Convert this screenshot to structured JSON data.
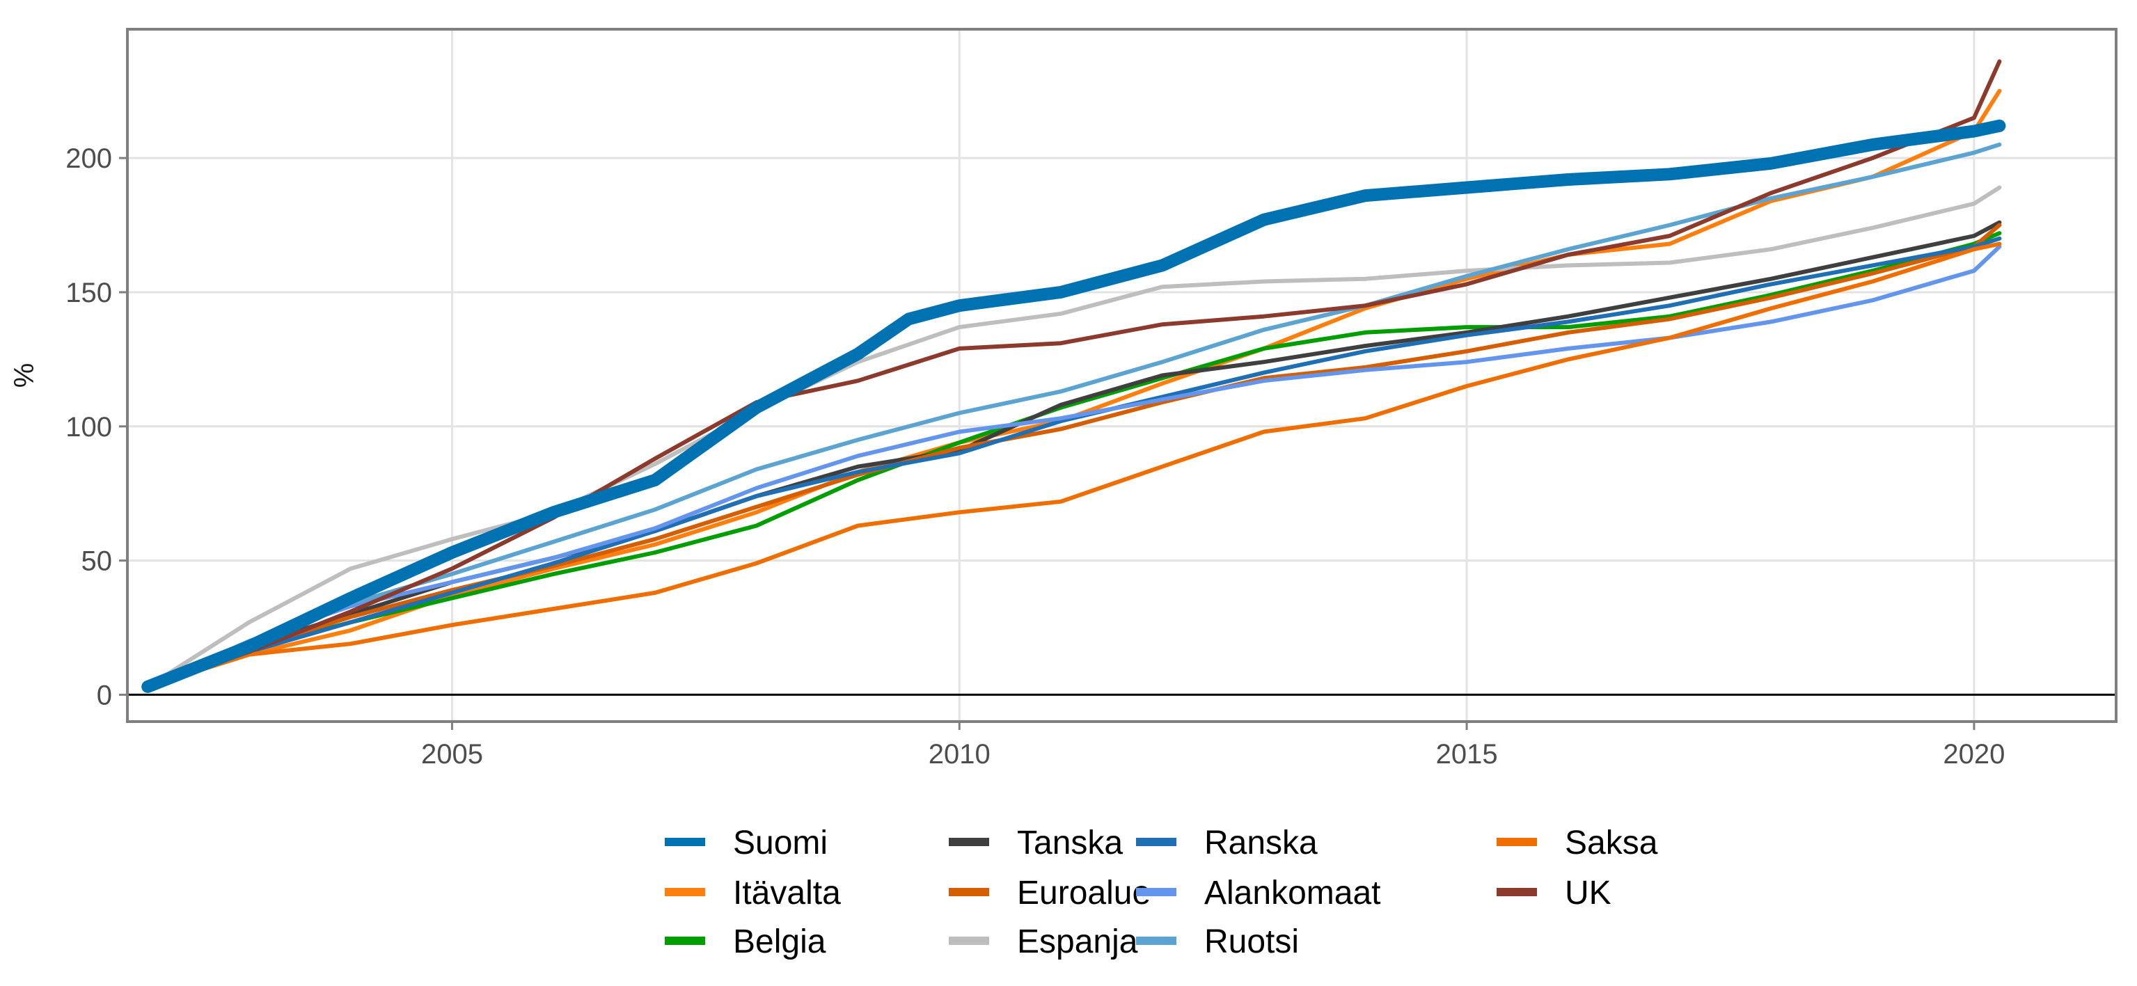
{
  "chart_data": {
    "type": "line",
    "title": "",
    "xlabel": "",
    "ylabel": "%",
    "xlim": [
      2001.8,
      2021.4
    ],
    "ylim": [
      -10,
      248
    ],
    "xticks": [
      2005,
      2010,
      2015,
      2020
    ],
    "xtick_labels": [
      "2005",
      "2010",
      "2015",
      "2020"
    ],
    "yticks": [
      0,
      50,
      100,
      150,
      200
    ],
    "ytick_labels": [
      "0",
      "50",
      "100",
      "150",
      "200"
    ],
    "grid": true,
    "legend_position": "bottom",
    "series": [
      {
        "name": "Suomi",
        "color": "#0072B2",
        "emphasis": true,
        "x": [
          2002,
          2003,
          2004,
          2005,
          2006,
          2007,
          2008,
          2009,
          2009.5,
          2010,
          2011,
          2012,
          2013,
          2014,
          2015,
          2016,
          2017,
          2018,
          2019,
          2020,
          2020.25
        ],
        "y": [
          3,
          18,
          36,
          53,
          68,
          80,
          107,
          127,
          140,
          145,
          150,
          160,
          177,
          186,
          189,
          192,
          194,
          198,
          205,
          210,
          212
        ]
      },
      {
        "name": "Itävalta",
        "color": "#FF7F0E",
        "x": [
          2002,
          2003,
          2004,
          2005,
          2006,
          2007,
          2008,
          2009,
          2010,
          2011,
          2012,
          2013,
          2014,
          2015,
          2016,
          2017,
          2018,
          2019,
          2020,
          2020.25
        ],
        "y": [
          3,
          15,
          24,
          37,
          47,
          56,
          68,
          83,
          94,
          102,
          116,
          129,
          144,
          155,
          164,
          168,
          184,
          193,
          210,
          225
        ]
      },
      {
        "name": "Belgia",
        "color": "#009E00",
        "x": [
          2002,
          2003,
          2004,
          2005,
          2006,
          2007,
          2008,
          2009,
          2010,
          2011,
          2012,
          2013,
          2014,
          2015,
          2016,
          2017,
          2018,
          2019,
          2020,
          2020.25
        ],
        "y": [
          3,
          17,
          27,
          36,
          45,
          53,
          63,
          80,
          94,
          107,
          118,
          129,
          135,
          137,
          137,
          141,
          149,
          158,
          168,
          172
        ]
      },
      {
        "name": "Tanska",
        "color": "#3F3F3F",
        "x": [
          2002,
          2003,
          2004,
          2005,
          2006,
          2007,
          2008,
          2009,
          2010,
          2011,
          2012,
          2013,
          2014,
          2015,
          2016,
          2017,
          2018,
          2019,
          2020,
          2020.25
        ],
        "y": [
          3,
          18,
          30,
          42,
          51,
          61,
          74,
          85,
          91,
          108,
          119,
          124,
          130,
          135,
          141,
          148,
          155,
          163,
          171,
          176
        ]
      },
      {
        "name": "Euroalue",
        "color": "#D55E00",
        "x": [
          2002,
          2003,
          2004,
          2005,
          2006,
          2007,
          2008,
          2009,
          2010,
          2011,
          2012,
          2013,
          2014,
          2015,
          2016,
          2017,
          2018,
          2019,
          2020,
          2020.25
        ],
        "y": [
          3,
          17,
          29,
          39,
          48,
          58,
          70,
          82,
          92,
          99,
          109,
          118,
          122,
          128,
          135,
          140,
          148,
          157,
          167,
          175
        ]
      },
      {
        "name": "Espanja",
        "color": "#BEBEBE",
        "x": [
          2002,
          2003,
          2004,
          2005,
          2006,
          2007,
          2008,
          2009,
          2010,
          2011,
          2012,
          2013,
          2014,
          2015,
          2016,
          2017,
          2018,
          2019,
          2020,
          2020.25
        ],
        "y": [
          3,
          27,
          47,
          58,
          68,
          86,
          106,
          124,
          137,
          142,
          152,
          154,
          155,
          158,
          160,
          161,
          166,
          174,
          183,
          189
        ]
      },
      {
        "name": "Ranska",
        "color": "#1F6FB4",
        "x": [
          2002,
          2003,
          2004,
          2005,
          2006,
          2007,
          2008,
          2009,
          2010,
          2011,
          2012,
          2013,
          2014,
          2015,
          2016,
          2017,
          2018,
          2019,
          2020,
          2020.25
        ],
        "y": [
          3,
          16,
          27,
          38,
          49,
          61,
          74,
          83,
          90,
          102,
          111,
          120,
          128,
          134,
          139,
          145,
          153,
          160,
          167,
          170
        ]
      },
      {
        "name": "Alankomaat",
        "color": "#6495ED",
        "x": [
          2002,
          2003,
          2004,
          2005,
          2006,
          2007,
          2008,
          2009,
          2010,
          2011,
          2012,
          2013,
          2014,
          2015,
          2016,
          2017,
          2018,
          2019,
          2020,
          2020.25
        ],
        "y": [
          3,
          20,
          33,
          42,
          51,
          62,
          77,
          89,
          98,
          103,
          110,
          117,
          121,
          124,
          129,
          133,
          139,
          147,
          158,
          167
        ]
      },
      {
        "name": "Ruotsi",
        "color": "#5BA3D0",
        "x": [
          2002,
          2003,
          2004,
          2005,
          2006,
          2007,
          2008,
          2009,
          2010,
          2011,
          2012,
          2013,
          2014,
          2015,
          2016,
          2017,
          2018,
          2019,
          2020,
          2020.25
        ],
        "y": [
          3,
          19,
          34,
          45,
          57,
          69,
          84,
          95,
          105,
          113,
          124,
          136,
          145,
          156,
          166,
          175,
          185,
          193,
          202,
          205
        ]
      },
      {
        "name": "Saksa",
        "color": "#EE6F00",
        "x": [
          2002,
          2003,
          2004,
          2005,
          2006,
          2007,
          2008,
          2009,
          2010,
          2011,
          2012,
          2013,
          2014,
          2015,
          2016,
          2017,
          2018,
          2019,
          2020,
          2020.25
        ],
        "y": [
          3,
          15,
          19,
          26,
          32,
          38,
          49,
          63,
          68,
          72,
          85,
          98,
          103,
          115,
          125,
          133,
          144,
          154,
          166,
          168
        ]
      },
      {
        "name": "UK",
        "color": "#8B3A2B",
        "x": [
          2002,
          2003,
          2004,
          2005,
          2006,
          2007,
          2008,
          2009,
          2010,
          2011,
          2012,
          2013,
          2014,
          2015,
          2016,
          2017,
          2018,
          2019,
          2020,
          2020.25
        ],
        "y": [
          3,
          16,
          31,
          47,
          66,
          88,
          109,
          117,
          129,
          131,
          138,
          141,
          145,
          153,
          164,
          171,
          187,
          200,
          215,
          236
        ]
      }
    ],
    "legend_columns": [
      [
        "Suomi",
        "Itävalta",
        "Belgia"
      ],
      [
        "Tanska",
        "Euroalue",
        "Espanja"
      ],
      [
        "Ranska",
        "Alankomaat",
        "Ruotsi"
      ],
      [
        "Saksa",
        "UK"
      ]
    ]
  }
}
